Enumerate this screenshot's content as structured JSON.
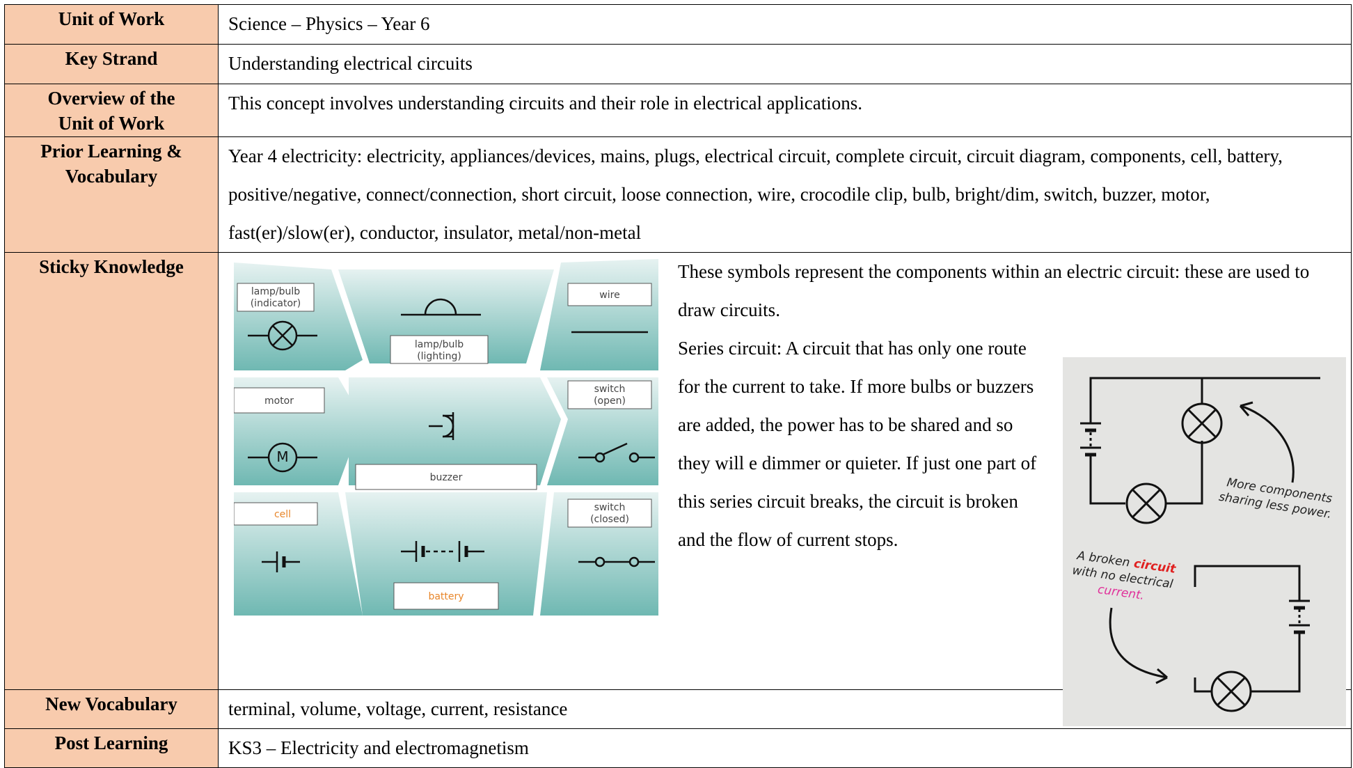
{
  "table": {
    "rows": [
      {
        "label": "Unit of Work",
        "content": "Science – Physics – Year 6"
      },
      {
        "label": "Key Strand",
        "content": "Understanding electrical circuits"
      },
      {
        "label": "Overview of the Unit of Work",
        "content": "This concept involves understanding circuits and their role in electrical applications."
      },
      {
        "label": "Prior Learning & Vocabulary",
        "content": "Year 4 electricity: electricity, appliances/devices, mains, plugs, electrical circuit, complete circuit, circuit diagram, components, cell, battery, positive/negative, connect/connection, short circuit, loose connection, wire, crocodile clip, bulb, bright/dim, switch, buzzer, motor, fast(er)/slow(er), conductor, insulator, metal/non-metal"
      },
      {
        "label": "Sticky Knowledge",
        "content": [
          "These symbols represent the components within an electric circuit: these are used to draw circuits.",
          "Series circuit: A circuit that has only one route for the current to take. If more bulbs or buzzers are added, the power has to be shared and so they will e dimmer or quieter. If just one part of this series circuit breaks, the circuit is broken and the flow of current stops."
        ]
      },
      {
        "label": "New Vocabulary",
        "content": "terminal, volume, voltage, current, resistance"
      },
      {
        "label": "Post Learning",
        "content": "KS3 – Electricity and electromagnetism"
      }
    ]
  },
  "symbols": {
    "labels": [
      [
        "lamp/bulb",
        "(indicator)"
      ],
      [
        "lamp/bulb",
        "(lighting)"
      ],
      [
        "wire"
      ],
      [
        "motor"
      ],
      [
        "buzzer"
      ],
      [
        "switch",
        "(open)"
      ],
      [
        "cell"
      ],
      [
        "battery"
      ],
      [
        "switch",
        "(closed)"
      ]
    ],
    "motor_letter": "M"
  },
  "illustration": {
    "caption_top": [
      "More components",
      "sharing less power."
    ],
    "caption_bottom": [
      "A broken",
      "circuit",
      "with no electrical",
      "current."
    ]
  }
}
